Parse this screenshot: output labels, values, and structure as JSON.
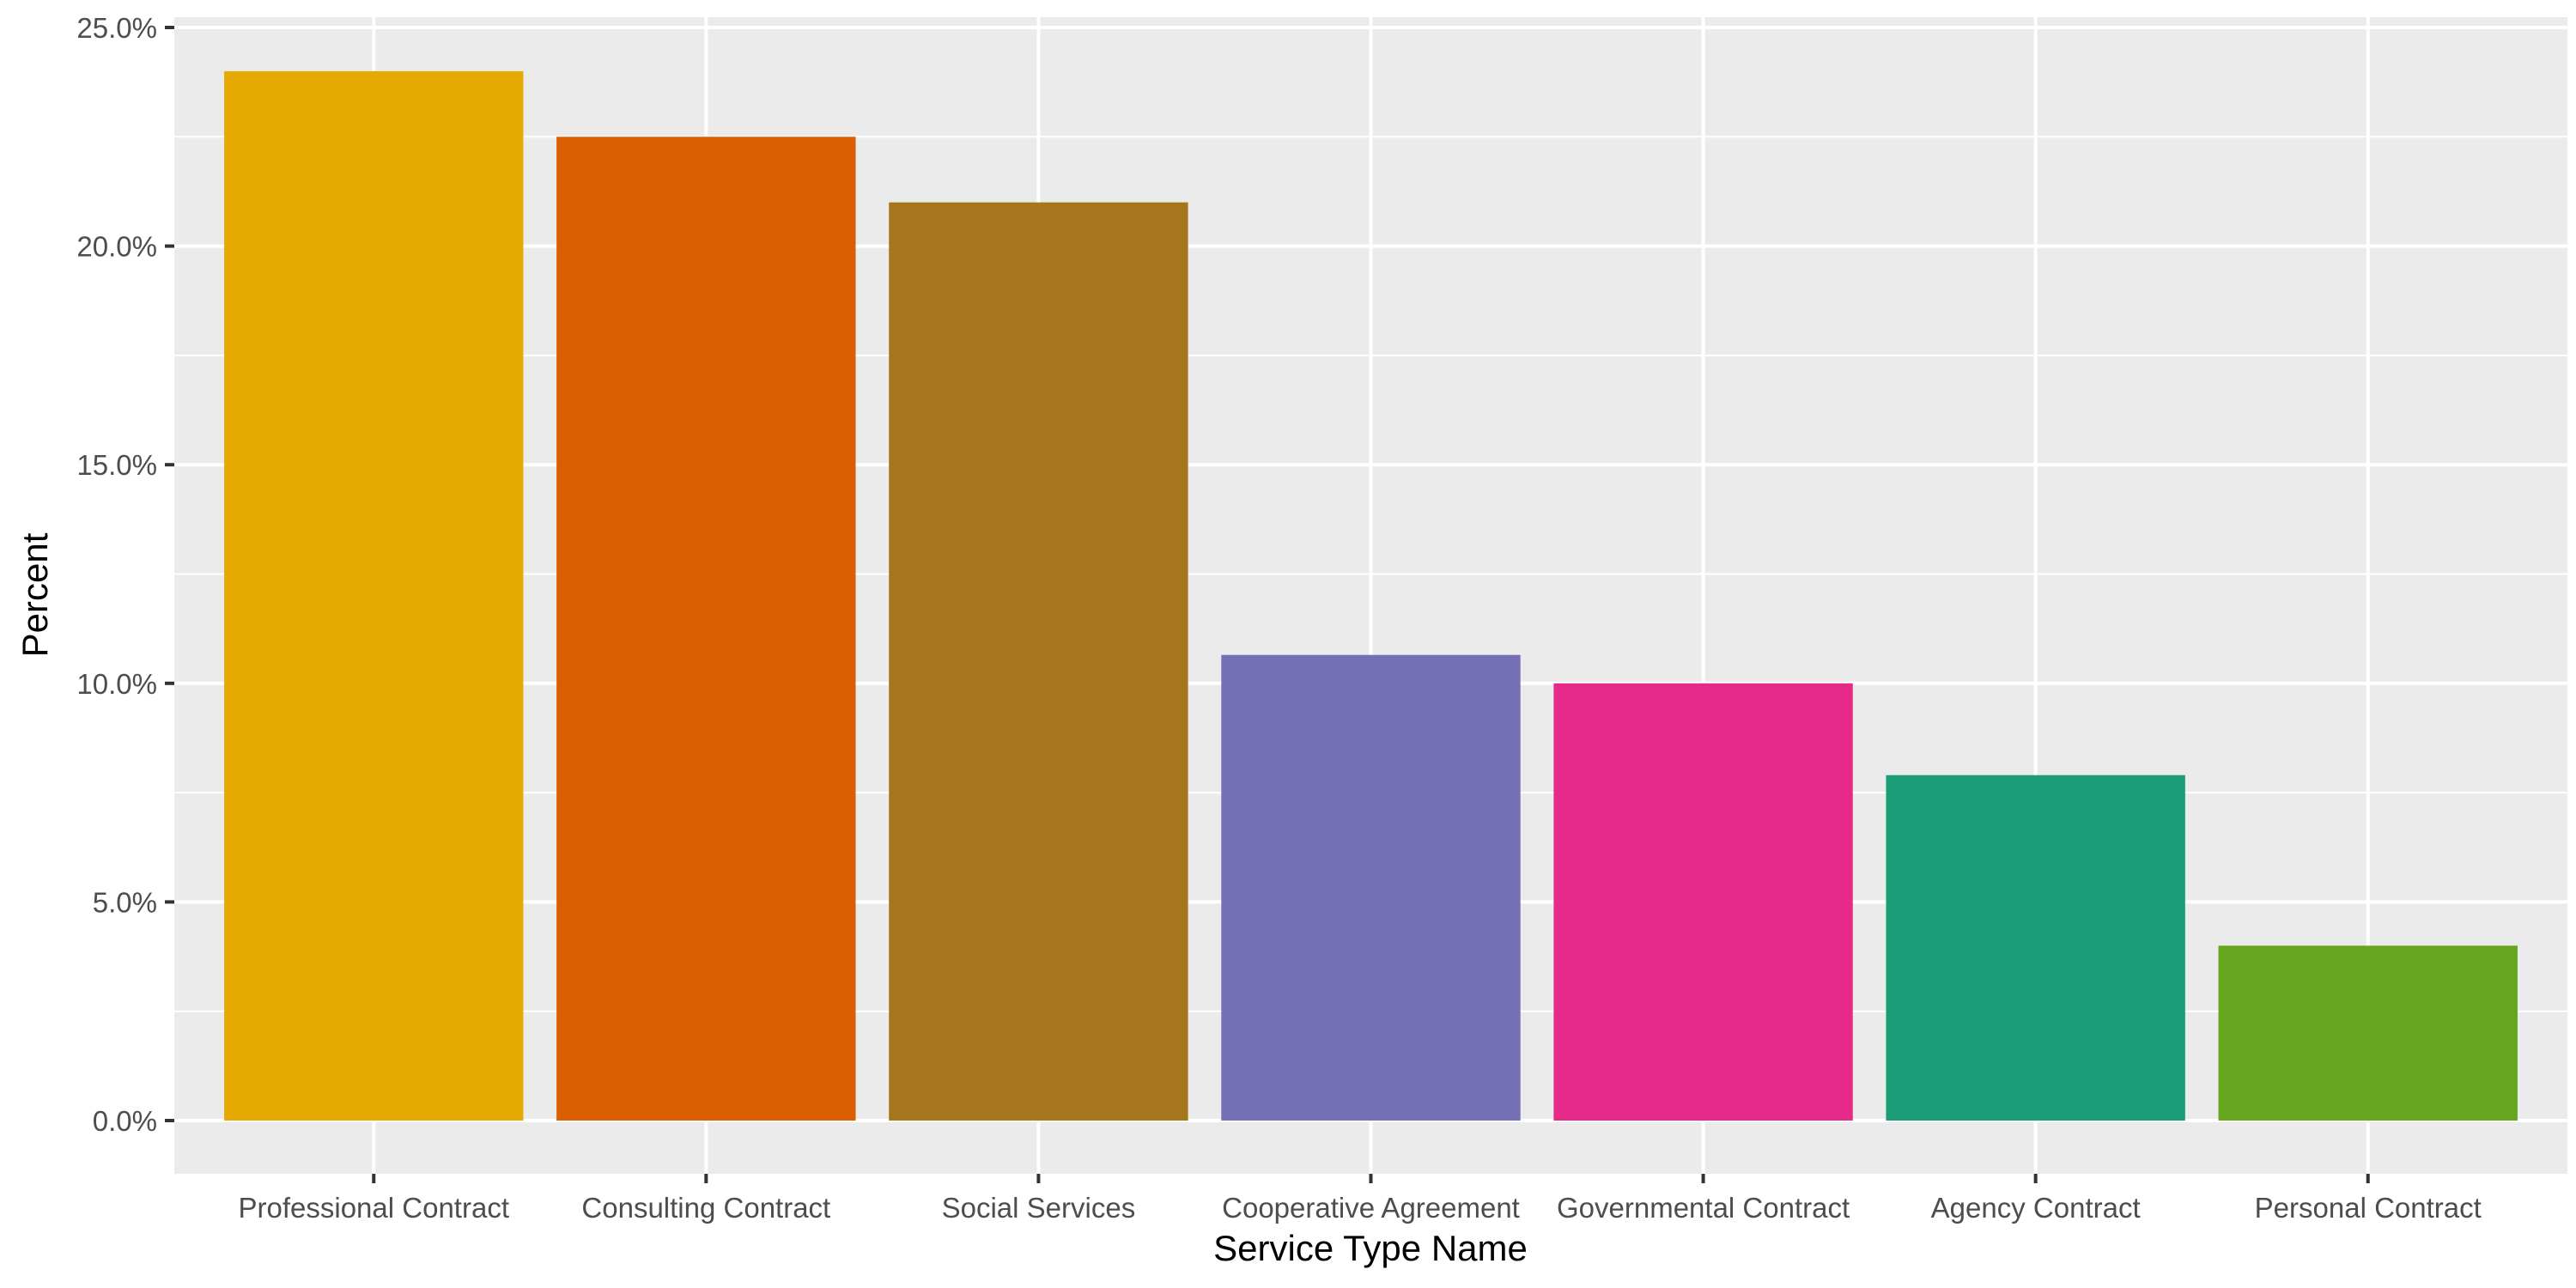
{
  "chart_data": {
    "type": "bar",
    "title": "",
    "xlabel": "Service Type Name",
    "ylabel": "Percent",
    "categories": [
      "Professional Contract",
      "Consulting Contract",
      "Social Services",
      "Cooperative Agreement",
      "Governmental Contract",
      "Agency Contract",
      "Personal Contract"
    ],
    "values": [
      24.0,
      22.5,
      21.0,
      10.65,
      10.0,
      7.9,
      4.0
    ],
    "colors": [
      "#E6AB02",
      "#D95F02",
      "#A6761D",
      "#7570B3",
      "#E7298A",
      "#1B9E77",
      "#66A61E"
    ],
    "ylim": [
      0,
      25
    ],
    "yticks": [
      0,
      5,
      10,
      15,
      20,
      25
    ],
    "ytick_labels": [
      "0.0%",
      "5.0%",
      "10.0%",
      "15.0%",
      "20.0%",
      "25.0%"
    ],
    "grid": true,
    "legend": "none",
    "panel_background": "#EBEBEB",
    "grid_color": "#FFFFFF"
  }
}
